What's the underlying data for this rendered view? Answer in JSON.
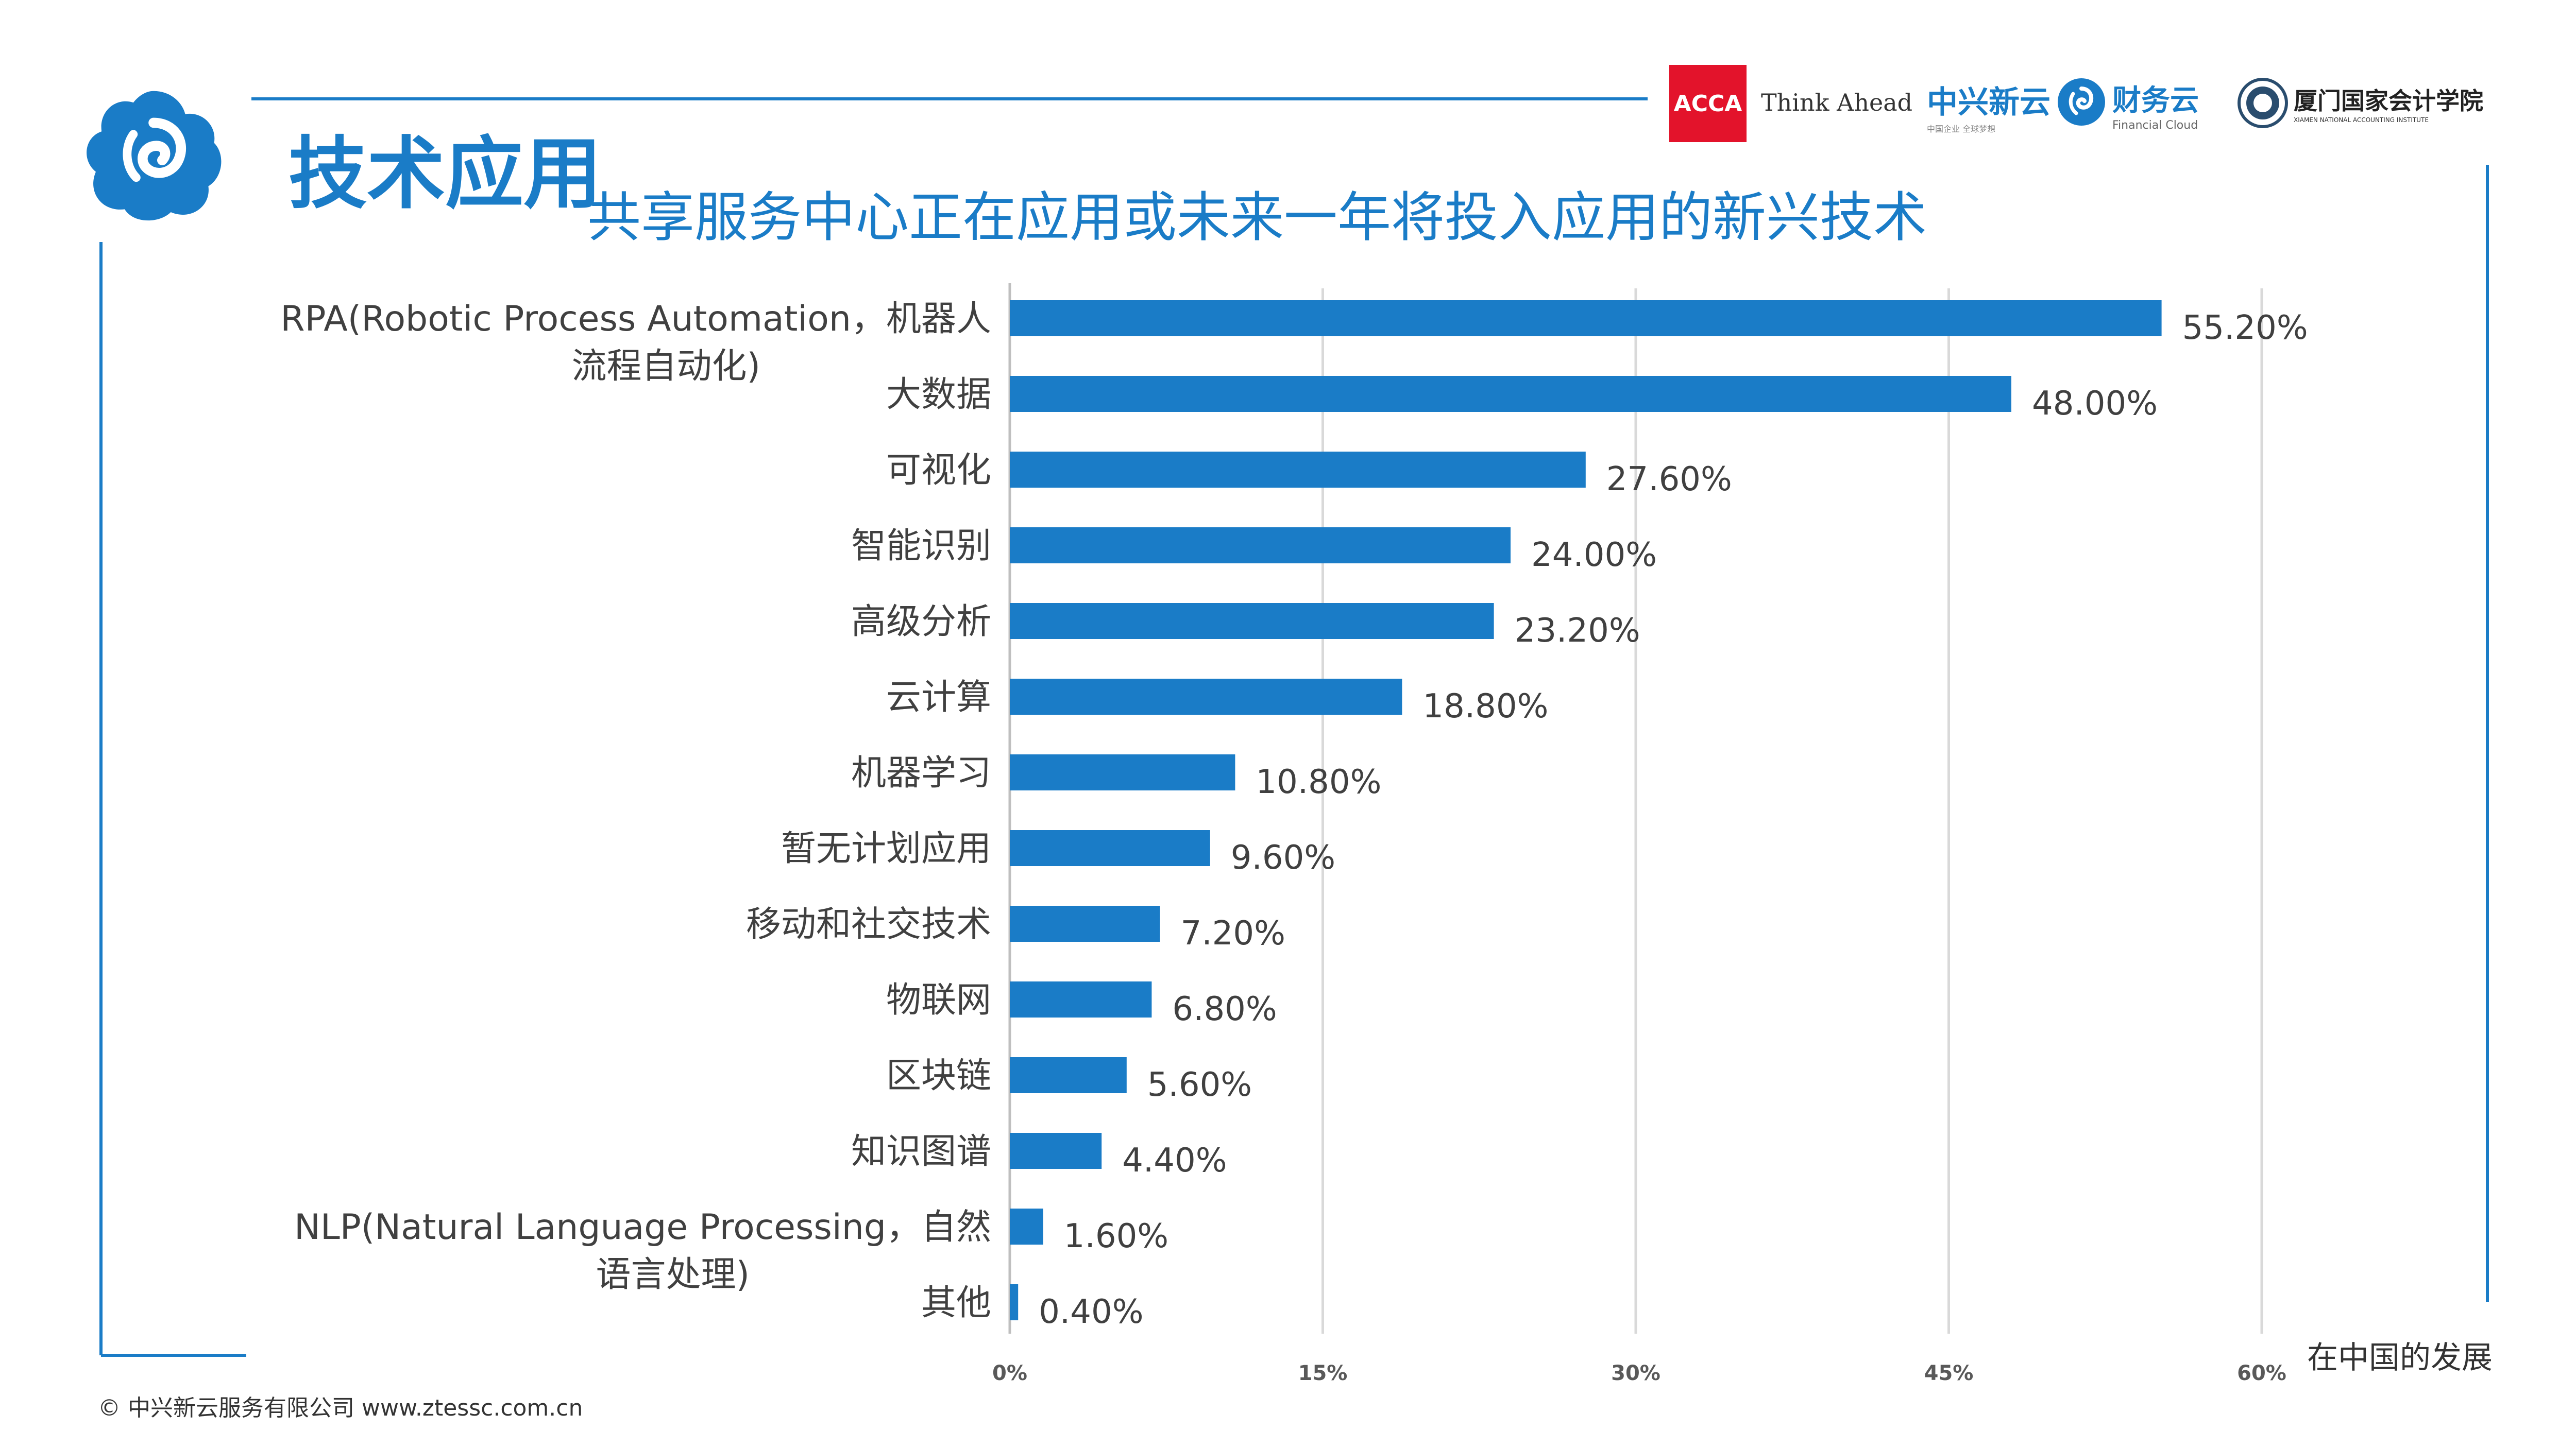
{
  "header": {
    "slide_title": "技术应用",
    "logos": {
      "acca": "ACCA",
      "acca_tagline": "Think Ahead",
      "zhongxing": "中兴新云",
      "zhongxing_sub": "中国企业 全球梦想",
      "caiwuyun": "财务云",
      "caiwuyun_sub": "Financial Cloud",
      "xiamen": "厦门国家会计学院",
      "xiamen_sub": "XIAMEN NATIONAL ACCOUNTING INSTITUTE"
    }
  },
  "footer": {
    "copyright": "© 中兴新云服务有限公司  www.ztessc.com.cn",
    "caption": "在中国的发展"
  },
  "colors": {
    "accent": "#1a7cc7",
    "bar": "#1a7cc7",
    "grid": "#d9d9d9",
    "acca_red": "#e3132b"
  },
  "chart_data": {
    "type": "bar",
    "orientation": "horizontal",
    "title": "共享服务中心正在应用或未来一年将投入应用的新兴技术",
    "categories": [
      [
        "RPA(Robotic Process Automation，机器人",
        "流程自动化)"
      ],
      [
        "大数据"
      ],
      [
        "可视化"
      ],
      [
        "智能识别"
      ],
      [
        "高级分析"
      ],
      [
        "云计算"
      ],
      [
        "机器学习"
      ],
      [
        "暂无计划应用"
      ],
      [
        "移动和社交技术"
      ],
      [
        "物联网"
      ],
      [
        "区块链"
      ],
      [
        "知识图谱"
      ],
      [
        "NLP(Natural Language Processing，自然",
        "语言处理)"
      ],
      [
        "其他"
      ]
    ],
    "values": [
      55.2,
      48.0,
      27.6,
      24.0,
      23.2,
      18.8,
      10.8,
      9.6,
      7.2,
      6.8,
      5.6,
      4.4,
      1.6,
      0.4
    ],
    "value_labels": [
      "55.20%",
      "48.00%",
      "27.60%",
      "24.00%",
      "23.20%",
      "18.80%",
      "10.80%",
      "9.60%",
      "7.20%",
      "6.80%",
      "5.60%",
      "4.40%",
      "1.60%",
      "0.40%"
    ],
    "xlim": [
      0,
      60
    ],
    "xticks": [
      0,
      15,
      30,
      45,
      60
    ],
    "xtick_labels": [
      "0%",
      "15%",
      "30%",
      "45%",
      "60%"
    ],
    "grid": true
  }
}
